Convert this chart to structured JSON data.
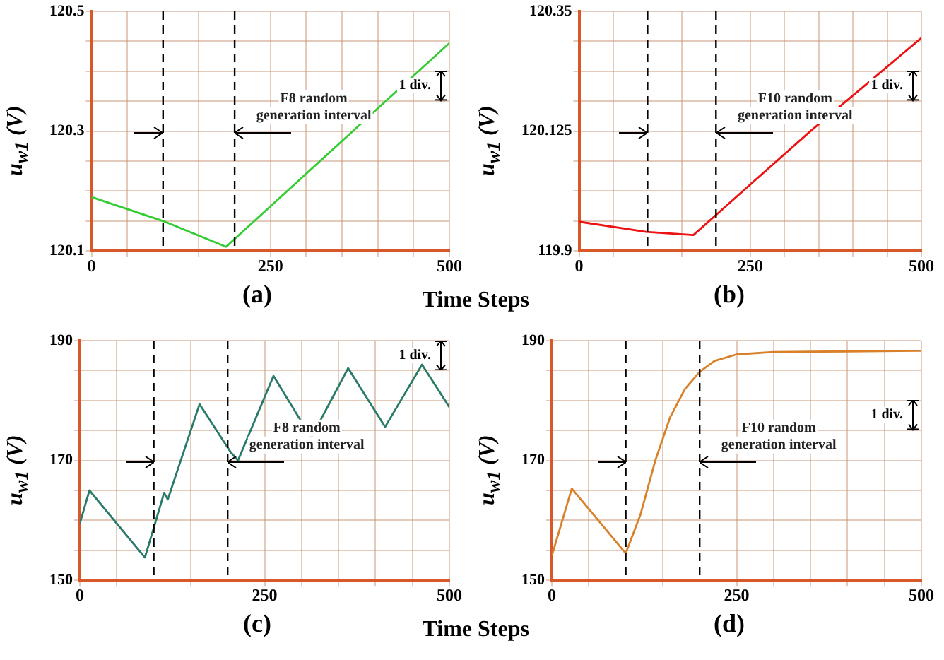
{
  "chart_data": [
    {
      "type": "line",
      "title": "(a)",
      "xlabel": "Time",
      "ylabel": "u$_{w1}$ (V)",
      "grid": true,
      "marker": "none",
      "line_style": "solid",
      "xlim": [
        0,
        500
      ],
      "ylim": [
        120.1,
        120.5
      ],
      "xticks": [
        0,
        {
          "value": 50,
          "label": null
        },
        {
          "value": 150,
          "label": null
        },
        250,
        {
          "value": 300,
          "label": null
        },
        {
          "value": 350,
          "label": null
        },
        {
          "value": 400,
          "label": null
        },
        {
          "value": 450,
          "label": null
        },
        500
      ],
      "yticks": [
        120.1,
        {
          "value": 120.15,
          "label": null
        },
        {
          "value": 120.2,
          "label": null
        },
        {
          "value": 120.25,
          "label": null
        },
        120.3,
        {
          "value": 120.35,
          "label": null
        },
        {
          "value": 120.4,
          "label": null
        },
        {
          "value": 120.45,
          "label": null
        },
        120.5
      ],
      "x": [
        0,
        100,
        188,
        500
      ],
      "series": [
        {
          "color": "#33cc33",
          "values": [
            120.19,
            120.15,
            120.107,
            120.447
          ]
        }
      ],
      "ref_lines": [
        {
          "axis": "x",
          "value": 100,
          "line_style": "dashed",
          "color": "#000000"
        },
        {
          "axis": "x",
          "value": 200,
          "line_style": "dashed",
          "color": "#000000"
        }
      ],
      "annotations": [
        "1 div.",
        "F8 random generation interval"
      ]
    },
    {
      "type": "line",
      "title": "(b)",
      "xlabel": "Steps",
      "ylabel": "u$_{w1}$ (V)",
      "grid": true,
      "marker": "none",
      "line_style": "solid",
      "xlim": [
        0,
        500
      ],
      "ylim": [
        119.9,
        120.35
      ],
      "xticks": [
        0,
        {
          "value": 50,
          "label": null
        },
        {
          "value": 150,
          "label": null
        },
        250,
        {
          "value": 300,
          "label": null
        },
        {
          "value": 350,
          "label": null
        },
        {
          "value": 400,
          "label": null
        },
        {
          "value": 450,
          "label": null
        },
        500
      ],
      "yticks": [
        119.9,
        {
          "value": 119.95625,
          "label": null
        },
        {
          "value": 120.0125,
          "label": null
        },
        {
          "value": 120.06875,
          "label": null
        },
        120.125,
        {
          "value": 120.18125,
          "label": null
        },
        {
          "value": 120.2375,
          "label": null
        },
        {
          "value": 120.29375,
          "label": null
        },
        120.35
      ],
      "x": [
        0,
        98,
        167,
        337,
        500
      ],
      "series": [
        {
          "color": "#ee1111",
          "values": [
            119.955,
            119.936,
            119.93,
            120.124,
            120.3
          ]
        }
      ],
      "ref_lines": [
        {
          "axis": "x",
          "value": 100,
          "line_style": "dashed",
          "color": "#000000"
        },
        {
          "axis": "x",
          "value": 200,
          "line_style": "dashed",
          "color": "#000000"
        }
      ],
      "annotations": [
        "1 div.",
        "F10 random generation interval"
      ]
    },
    {
      "type": "line",
      "title": "(c)",
      "xlabel": "Time",
      "ylabel": "u$_{w1}$ (V)",
      "grid": true,
      "marker": "none",
      "line_style": "solid",
      "xlim": [
        0,
        500
      ],
      "ylim": [
        150,
        190
      ],
      "xticks": [
        0,
        {
          "value": 50,
          "label": null
        },
        {
          "value": 150,
          "label": null
        },
        250,
        {
          "value": 300,
          "label": null
        },
        {
          "value": 350,
          "label": null
        },
        {
          "value": 400,
          "label": null
        },
        {
          "value": 450,
          "label": null
        },
        500
      ],
      "yticks": [
        150,
        {
          "value": 155,
          "label": null
        },
        {
          "value": 160,
          "label": null
        },
        {
          "value": 165,
          "label": null
        },
        170,
        {
          "value": 175,
          "label": null
        },
        {
          "value": 180,
          "label": null
        },
        {
          "value": 185,
          "label": null
        },
        190
      ],
      "x": [
        0,
        13,
        88,
        104,
        114,
        119,
        162,
        204,
        214,
        262,
        313,
        363,
        413,
        463,
        500
      ],
      "series": [
        {
          "color": "#2a7a6a",
          "values": [
            159.5,
            165,
            153.8,
            160.4,
            164.6,
            163.5,
            179.4,
            171.4,
            170,
            184.1,
            173.8,
            185.4,
            175.6,
            186,
            178.9
          ]
        }
      ],
      "ref_lines": [
        {
          "axis": "x",
          "value": 100,
          "line_style": "dashed",
          "color": "#000000"
        },
        {
          "axis": "x",
          "value": 200,
          "line_style": "dashed",
          "color": "#000000"
        }
      ],
      "annotations": [
        "1 div.",
        "F8 random generation interval"
      ]
    },
    {
      "type": "line",
      "title": "(d)",
      "xlabel": "Steps",
      "ylabel": "u$_{w1}$ (V)",
      "grid": true,
      "marker": "none",
      "line_style": "solid",
      "xlim": [
        0,
        500
      ],
      "ylim": [
        150,
        190
      ],
      "xticks": [
        0,
        {
          "value": 50,
          "label": null
        },
        {
          "value": 150,
          "label": null
        },
        250,
        {
          "value": 300,
          "label": null
        },
        {
          "value": 350,
          "label": null
        },
        {
          "value": 400,
          "label": null
        },
        {
          "value": 450,
          "label": null
        },
        500
      ],
      "yticks": [
        150,
        {
          "value": 155,
          "label": null
        },
        {
          "value": 160,
          "label": null
        },
        {
          "value": 165,
          "label": null
        },
        170,
        {
          "value": 175,
          "label": null
        },
        {
          "value": 180,
          "label": null
        },
        {
          "value": 185,
          "label": null
        },
        190
      ],
      "x": [
        0,
        27,
        100,
        120,
        140,
        160,
        180,
        200,
        220,
        250,
        300,
        400,
        500
      ],
      "series": [
        {
          "color": "#d9812a",
          "values": [
            154.1,
            165.3,
            154.5,
            161,
            170,
            177.2,
            181.9,
            184.8,
            186.6,
            187.7,
            188.1,
            188.2,
            188.3
          ]
        }
      ],
      "ref_lines": [
        {
          "axis": "x",
          "value": 100,
          "line_style": "dashed",
          "color": "#000000"
        },
        {
          "axis": "x",
          "value": 200,
          "line_style": "dashed",
          "color": "#000000"
        }
      ],
      "annotations": [
        "1 div.",
        "F10 random generation interval"
      ]
    }
  ]
}
